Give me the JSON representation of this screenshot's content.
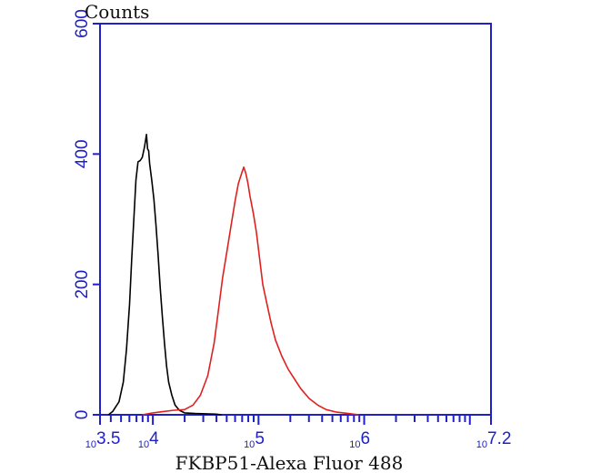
{
  "chart_data": {
    "type": "line",
    "title": "",
    "xlabel": "FKBP51-Alexa Fluor 488",
    "ylabel": "Counts",
    "x_scale": "log10",
    "xlim": [
      3.5,
      7.2
    ],
    "ylim": [
      0,
      600
    ],
    "grid": false,
    "legend": "none",
    "yticks": [
      {
        "value": 0,
        "label": "0"
      },
      {
        "value": 200,
        "label": "200"
      },
      {
        "value": 400,
        "label": "400"
      },
      {
        "value": 600,
        "label": "600"
      }
    ],
    "xtick_labels": [
      {
        "exp": 3.5,
        "base": "10",
        "power": "3.5"
      },
      {
        "exp": 4,
        "base": "10",
        "power": "4"
      },
      {
        "exp": 5,
        "base": "10",
        "power": "5"
      },
      {
        "exp": 6,
        "base": "10",
        "power": "6"
      },
      {
        "exp": 7.2,
        "base": "10",
        "power": "7.2"
      }
    ],
    "series": [
      {
        "color": "#000000",
        "points": [
          [
            3.58,
            0
          ],
          [
            3.62,
            5
          ],
          [
            3.68,
            20
          ],
          [
            3.72,
            50
          ],
          [
            3.75,
            100
          ],
          [
            3.78,
            170
          ],
          [
            3.8,
            240
          ],
          [
            3.82,
            300
          ],
          [
            3.84,
            360
          ],
          [
            3.86,
            388
          ],
          [
            3.88,
            390
          ],
          [
            3.9,
            395
          ],
          [
            3.92,
            410
          ],
          [
            3.93,
            420
          ],
          [
            3.94,
            430
          ],
          [
            3.95,
            408
          ],
          [
            3.96,
            405
          ],
          [
            3.97,
            385
          ],
          [
            3.99,
            360
          ],
          [
            4.01,
            330
          ],
          [
            4.03,
            290
          ],
          [
            4.05,
            245
          ],
          [
            4.07,
            195
          ],
          [
            4.09,
            150
          ],
          [
            4.11,
            110
          ],
          [
            4.13,
            75
          ],
          [
            4.15,
            50
          ],
          [
            4.18,
            30
          ],
          [
            4.21,
            15
          ],
          [
            4.25,
            7
          ],
          [
            4.3,
            3
          ],
          [
            4.4,
            2
          ],
          [
            4.6,
            1
          ],
          [
            4.65,
            0
          ]
        ]
      },
      {
        "color": "#e02020",
        "points": [
          [
            3.9,
            0
          ],
          [
            4.0,
            3
          ],
          [
            4.1,
            5
          ],
          [
            4.2,
            7
          ],
          [
            4.3,
            8
          ],
          [
            4.38,
            15
          ],
          [
            4.45,
            30
          ],
          [
            4.52,
            60
          ],
          [
            4.58,
            110
          ],
          [
            4.62,
            160
          ],
          [
            4.66,
            210
          ],
          [
            4.7,
            250
          ],
          [
            4.74,
            290
          ],
          [
            4.78,
            330
          ],
          [
            4.81,
            355
          ],
          [
            4.84,
            370
          ],
          [
            4.86,
            380
          ],
          [
            4.88,
            370
          ],
          [
            4.9,
            355
          ],
          [
            4.92,
            335
          ],
          [
            4.95,
            310
          ],
          [
            4.98,
            280
          ],
          [
            5.01,
            240
          ],
          [
            5.04,
            200
          ],
          [
            5.08,
            170
          ],
          [
            5.12,
            140
          ],
          [
            5.16,
            115
          ],
          [
            5.22,
            90
          ],
          [
            5.28,
            70
          ],
          [
            5.34,
            55
          ],
          [
            5.4,
            40
          ],
          [
            5.48,
            25
          ],
          [
            5.56,
            15
          ],
          [
            5.64,
            8
          ],
          [
            5.74,
            4
          ],
          [
            5.85,
            2
          ],
          [
            5.95,
            0
          ]
        ]
      }
    ]
  }
}
